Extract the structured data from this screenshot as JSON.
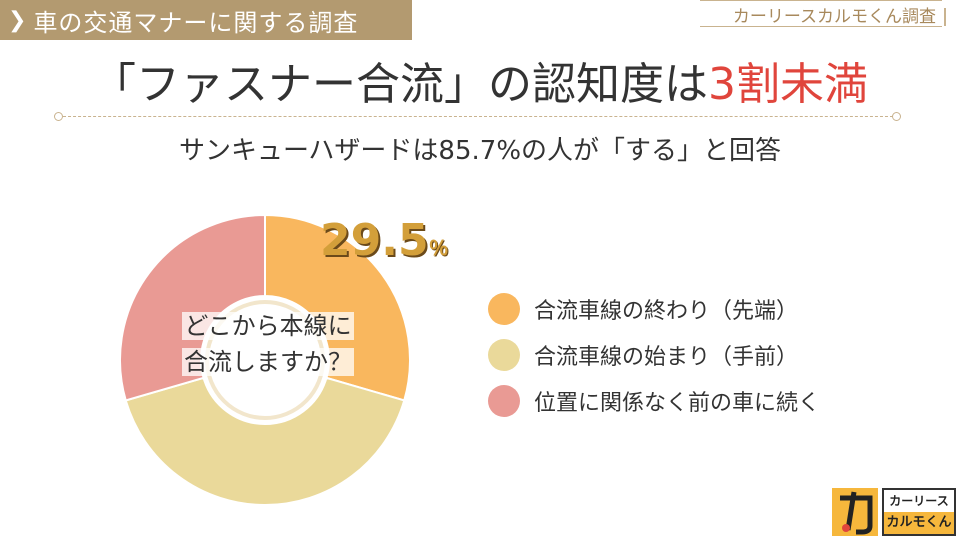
{
  "header": {
    "tag": "車の交通マナーに関する調査",
    "credit": "カーリースカルモくん調査"
  },
  "headline": {
    "prefix": "「ファスナー合流」の認知度は",
    "highlight": "3割未満"
  },
  "subheadline": "サンキューハザードは85.7%の人が「する」と回答",
  "chart_data": {
    "type": "pie",
    "title": "どこから本線に合流しますか？",
    "title_lines": [
      "どこから本線に",
      "合流しますか？"
    ],
    "categories": [
      "合流車線の終わり（先端）",
      "合流車線の始まり（手前）",
      "位置に関係なく前の車に続く"
    ],
    "values": [
      29.5,
      41.0,
      29.5
    ],
    "colors": [
      "#f9b75e",
      "#ead99a",
      "#e99a94"
    ],
    "annotation": {
      "value": "29.5",
      "unit": "％"
    },
    "legend": "right"
  },
  "logo": {
    "line1": "カーリース",
    "line2": "カルモくん"
  }
}
